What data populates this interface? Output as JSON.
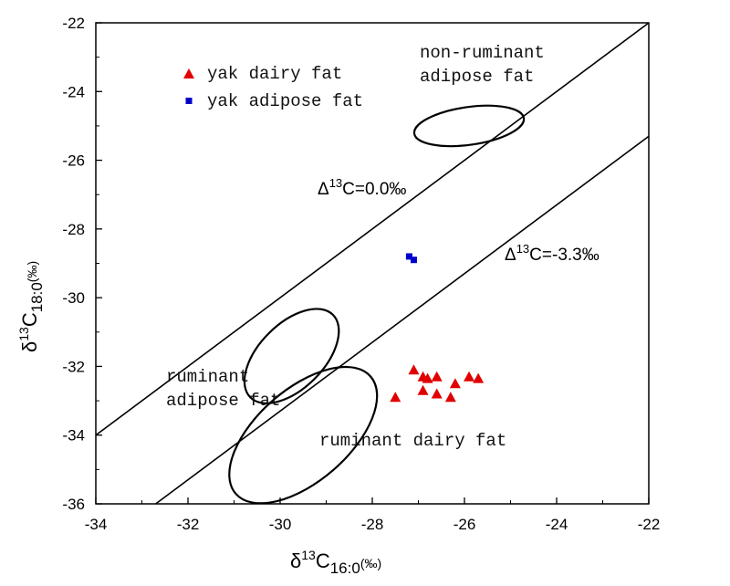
{
  "chart_data": {
    "type": "scatter",
    "xlabel_main": "δ",
    "xlabel_sup": "13",
    "xlabel_sub": "C",
    "xlabel_subscript": "16:0",
    "xlabel_unit": "(‰)",
    "ylabel_main": "δ",
    "ylabel_sup": "13",
    "ylabel_sub": "C",
    "ylabel_subscript": "18:0",
    "ylabel_unit": "(‰)",
    "xlim": [
      -34,
      -22
    ],
    "ylim": [
      -36,
      -22
    ],
    "x_ticks": [
      -34,
      -32,
      -30,
      -28,
      -26,
      -24,
      -22
    ],
    "y_ticks": [
      -36,
      -34,
      -32,
      -30,
      -28,
      -26,
      -24,
      -22
    ],
    "grid": false,
    "legend_position": "top-left",
    "series": [
      {
        "name": "yak dairy fat",
        "marker": "triangle",
        "color": "#e00000",
        "points": [
          [
            -27.5,
            -32.9
          ],
          [
            -27.1,
            -32.1
          ],
          [
            -26.9,
            -32.3
          ],
          [
            -26.8,
            -32.35
          ],
          [
            -26.6,
            -32.3
          ],
          [
            -26.2,
            -32.5
          ],
          [
            -25.9,
            -32.3
          ],
          [
            -25.7,
            -32.35
          ],
          [
            -26.9,
            -32.7
          ],
          [
            -26.6,
            -32.8
          ],
          [
            -26.3,
            -32.9
          ]
        ]
      },
      {
        "name": "yak adipose fat",
        "marker": "square",
        "color": "#0000cc",
        "points": [
          [
            -27.2,
            -28.8
          ],
          [
            -27.1,
            -28.9
          ]
        ]
      }
    ],
    "reference_lines": [
      {
        "label_pre": "Δ",
        "label_sup": "13",
        "label_post": "C=0.0‰",
        "slope": 1,
        "intercept": 0
      },
      {
        "label_pre": "Δ",
        "label_sup": "13",
        "label_post": "C=-3.3‰",
        "slope": 1,
        "intercept": -3.3
      }
    ],
    "regions": [
      {
        "label_lines": [
          "non-ruminant",
          "adipose fat"
        ],
        "center": [
          -25.9,
          -25.0
        ],
        "rx": 1.2,
        "ry": 0.55,
        "angle_deg": -8
      },
      {
        "label_lines": [
          "ruminant",
          "adipose fat"
        ],
        "center": [
          -29.75,
          -31.7
        ],
        "rx": 0.7,
        "ry": 1.7,
        "angle_deg": 45
      },
      {
        "label_lines": [
          "ruminant dairy fat"
        ],
        "center": [
          -29.5,
          -34.0
        ],
        "rx": 1.0,
        "ry": 2.6,
        "angle_deg": 49
      }
    ]
  }
}
